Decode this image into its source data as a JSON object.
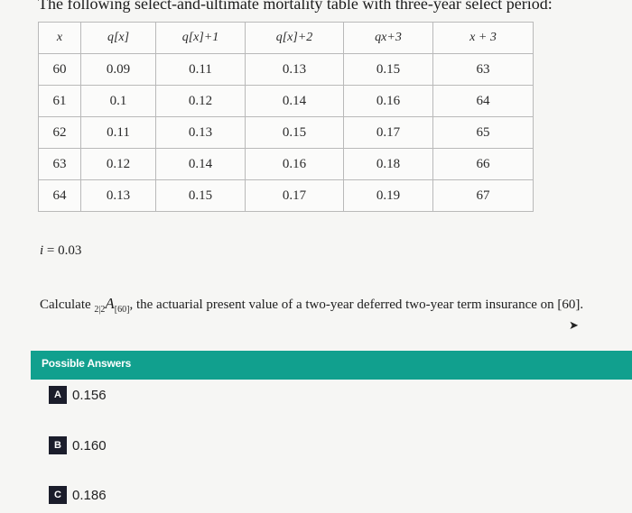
{
  "title": "The following select-and-ultimate mortality table with three-year select period:",
  "table": {
    "headers": [
      "x",
      "q[x]",
      "q[x]+1",
      "q[x]+2",
      "qx+3",
      "x + 3"
    ],
    "rows": [
      [
        "60",
        "0.09",
        "0.11",
        "0.13",
        "0.15",
        "63"
      ],
      [
        "61",
        "0.1",
        "0.12",
        "0.14",
        "0.16",
        "64"
      ],
      [
        "62",
        "0.11",
        "0.13",
        "0.15",
        "0.17",
        "65"
      ],
      [
        "63",
        "0.12",
        "0.14",
        "0.16",
        "0.18",
        "66"
      ],
      [
        "64",
        "0.13",
        "0.15",
        "0.17",
        "0.19",
        "67"
      ]
    ]
  },
  "interest": {
    "symbol": "i",
    "rest": " = 0.03"
  },
  "question": {
    "before": "Calculate ",
    "subscript": "2|2",
    "symbol": "A",
    "post_subscript": "[60]",
    "after": ", the actuarial present value of a two-year deferred two-year term insurance on [60]."
  },
  "answers_header": "Possible Answers",
  "options": [
    {
      "letter": "A",
      "value": "0.156"
    },
    {
      "letter": "B",
      "value": "0.160"
    },
    {
      "letter": "C",
      "value": "0.186"
    }
  ],
  "colors": {
    "accent": "#11a08e",
    "badge": "#1b1d2b",
    "background": "#f6f6f4"
  }
}
